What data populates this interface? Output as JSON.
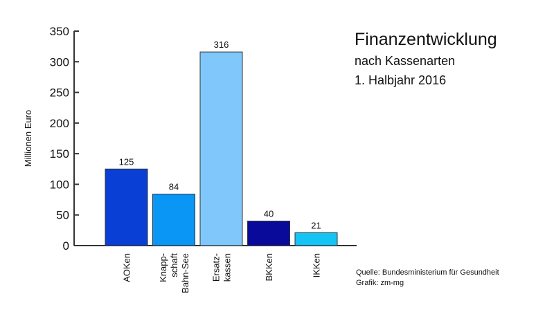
{
  "chart_data": {
    "type": "bar",
    "title": "Finanzentwicklung",
    "subtitle": [
      "nach Kassenarten",
      "1. Halbjahr 2016"
    ],
    "ylabel": "Millionen Euro",
    "xlabel": "",
    "ylim": [
      0,
      350
    ],
    "yticks": [
      "0",
      "50",
      "100",
      "150",
      "200",
      "250",
      "300",
      "350"
    ],
    "grid": false,
    "categories": [
      {
        "lines": [
          "AOKen"
        ]
      },
      {
        "lines": [
          "Knapp-",
          "schaft",
          "Bahn-See"
        ]
      },
      {
        "lines": [
          "Ersatz-",
          "kassen"
        ]
      },
      {
        "lines": [
          "BKKen"
        ]
      },
      {
        "lines": [
          "IKKen"
        ]
      }
    ],
    "values": [
      125,
      84,
      316,
      40,
      21
    ],
    "value_labels": [
      "125",
      "84",
      "316",
      "40",
      "21"
    ],
    "colors": [
      "#0a3fd6",
      "#0a96f5",
      "#80c8fb",
      "#0a0a9a",
      "#14c4f5"
    ],
    "source": [
      "Quelle: Bundesministerium für Gesundheit",
      "Grafik: zm-mg"
    ]
  }
}
